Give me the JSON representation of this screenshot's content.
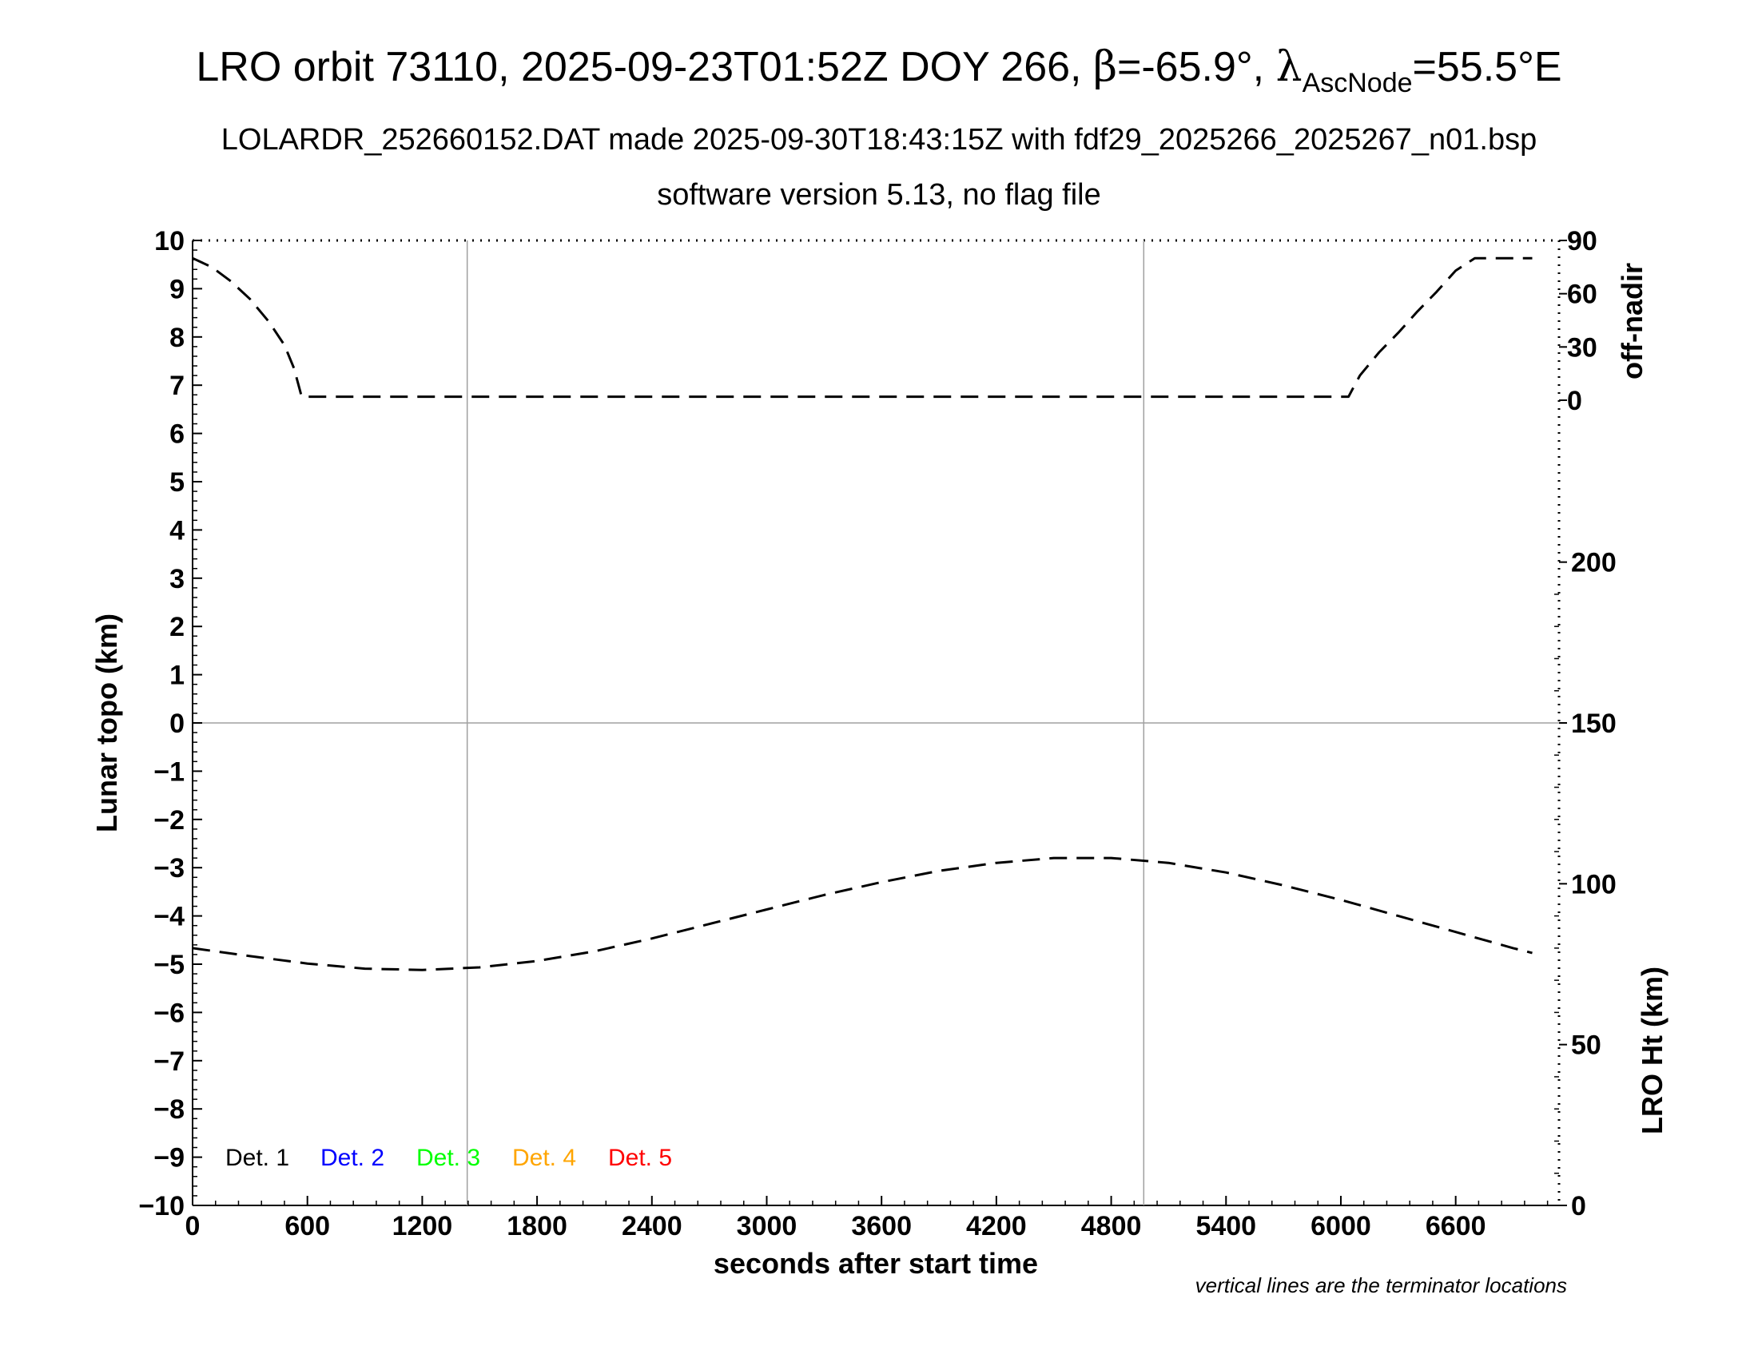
{
  "title": {
    "main_prefix": "LRO orbit 73110, 2025-09-23T01:52Z DOY 266, ",
    "beta_symbol": "β",
    "beta_value": "=-65.9°, ",
    "lambda_symbol": "λ",
    "lambda_subscript": "AscNode",
    "lambda_value": "=55.5°E",
    "line2": "LOLARDR_252660152.DAT made 2025-09-30T18:43:15Z with fdf29_2025266_2025267_n01.bsp",
    "line3": "software version 5.13, no flag file"
  },
  "footnote": "vertical lines are the terminator locations",
  "colors": {
    "det1": "#000000",
    "det2": "#0000ff",
    "det3": "#00ff00",
    "det4": "#ffa500",
    "det5": "#ff0000",
    "grid": "#a0a0a0"
  },
  "chart_data": {
    "type": "line",
    "xlabel": "seconds after start time",
    "xlim": [
      0,
      7140
    ],
    "xticks": [
      0,
      600,
      1200,
      1800,
      2400,
      3000,
      3600,
      4200,
      4800,
      5400,
      6000,
      6600
    ],
    "left_axis": {
      "label": "Lunar topo (km)",
      "ylim": [
        -10,
        10
      ],
      "ticks": [
        10,
        9,
        8,
        7,
        6,
        5,
        4,
        3,
        2,
        1,
        0,
        -1,
        -2,
        -3,
        -4,
        -5,
        -6,
        -7,
        -8,
        -9,
        -10
      ],
      "tick_labels": [
        "10",
        "9",
        "8",
        "7",
        "6",
        "5",
        "4",
        "3",
        "2",
        "1",
        "0",
        "−1",
        "−2",
        "−3",
        "−4",
        "−5",
        "−6",
        "−7",
        "−8",
        "−9",
        "−10"
      ]
    },
    "right_axis_offnadir": {
      "label": "off-nadir",
      "ticks": [
        90,
        60,
        30,
        0
      ]
    },
    "right_axis_height": {
      "label": "LRO Ht (km)",
      "ylim": [
        0,
        300
      ],
      "ticks": [
        200,
        150,
        100,
        50,
        0
      ]
    },
    "terminator_x": [
      1435,
      4970
    ],
    "legend": [
      "Det. 1",
      "Det. 2",
      "Det. 3",
      "Det. 4",
      "Det. 5"
    ],
    "series": [
      {
        "axis": "off-nadir",
        "style": "dashed",
        "x": [
          0,
          100,
          200,
          300,
          400,
          480,
          530,
          555,
          570,
          900,
          1435,
          2400,
          3600,
          4800,
          5400,
          6000,
          6040,
          6060,
          6100,
          6200,
          6300,
          6400,
          6500,
          6600,
          6700,
          7000
        ],
        "y": [
          80,
          75,
          67,
          57,
          44,
          31,
          18,
          8,
          2,
          2,
          2,
          2,
          2,
          2,
          2,
          2,
          2,
          6,
          14,
          27,
          38,
          50,
          61,
          73,
          80,
          80
        ]
      },
      {
        "axis": "LRO Ht (km)",
        "style": "dashed",
        "x": [
          0,
          300,
          600,
          900,
          1200,
          1500,
          1800,
          2100,
          2400,
          2700,
          3000,
          3300,
          3600,
          3900,
          4200,
          4500,
          4800,
          5100,
          5400,
          5700,
          6000,
          6300,
          6600,
          6900,
          7000
        ],
        "y": [
          80,
          77.5,
          75.2,
          73.6,
          73.2,
          74,
          76,
          79,
          83,
          87.5,
          92,
          96.5,
          100.5,
          104,
          106.5,
          108,
          108,
          106.5,
          103.5,
          99.5,
          95,
          90,
          85,
          80,
          78.5
        ]
      }
    ]
  }
}
